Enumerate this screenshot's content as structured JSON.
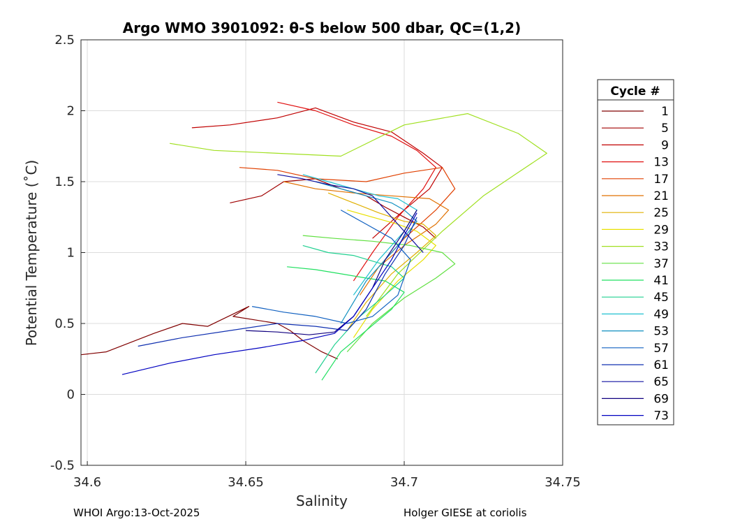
{
  "chart_data": {
    "type": "line",
    "title": "Argo WMO 3901092: θ-S below 500 dbar,  QC=(1,2)",
    "xlabel": "Salinity",
    "ylabel": "Potential Temperature (˚C)",
    "xlim": [
      34.598,
      34.75
    ],
    "ylim": [
      -0.5,
      2.5
    ],
    "xticks": [
      34.6,
      34.65,
      34.7,
      34.75
    ],
    "xtick_labels": [
      "34.6",
      "34.65",
      "34.7",
      "34.75"
    ],
    "yticks": [
      -0.5,
      0,
      0.5,
      1,
      1.5,
      2,
      2.5
    ],
    "ytick_labels": [
      "-0.5",
      "0",
      "0.5",
      "1",
      "1.5",
      "2",
      "2.5"
    ],
    "grid": true,
    "legend": {
      "title": "Cycle #",
      "placement": "right",
      "entries": [
        {
          "label": "1",
          "color": "#800000"
        },
        {
          "label": "5",
          "color": "#a00000"
        },
        {
          "label": "9",
          "color": "#c00000"
        },
        {
          "label": "13",
          "color": "#e01010"
        },
        {
          "label": "17",
          "color": "#e04000"
        },
        {
          "label": "21",
          "color": "#e07000"
        },
        {
          "label": "25",
          "color": "#e0b000"
        },
        {
          "label": "29",
          "color": "#e8e000"
        },
        {
          "label": "33",
          "color": "#a0e020"
        },
        {
          "label": "37",
          "color": "#60e040"
        },
        {
          "label": "41",
          "color": "#20e060"
        },
        {
          "label": "45",
          "color": "#20d090"
        },
        {
          "label": "49",
          "color": "#20c0d0"
        },
        {
          "label": "53",
          "color": "#1090c0"
        },
        {
          "label": "57",
          "color": "#1060c0"
        },
        {
          "label": "61",
          "color": "#1030b0"
        },
        {
          "label": "65",
          "color": "#1010a0"
        },
        {
          "label": "69",
          "color": "#100080"
        },
        {
          "label": "73",
          "color": "#0000c0"
        }
      ]
    },
    "series": [
      {
        "name": "1",
        "color": "#800000",
        "x": [
          34.598,
          34.606,
          34.621,
          34.63,
          34.638,
          34.651,
          34.646,
          34.66,
          34.664,
          34.668,
          34.674,
          34.679
        ],
        "y": [
          0.28,
          0.3,
          0.43,
          0.5,
          0.48,
          0.62,
          0.55,
          0.5,
          0.45,
          0.38,
          0.3,
          0.25
        ]
      },
      {
        "name": "5",
        "color": "#a00000",
        "x": [
          34.645,
          34.655,
          34.662,
          34.672,
          34.68,
          34.688,
          34.694,
          34.7,
          34.706,
          34.71
        ],
        "y": [
          1.35,
          1.4,
          1.5,
          1.52,
          1.45,
          1.4,
          1.32,
          1.25,
          1.18,
          1.1
        ]
      },
      {
        "name": "9",
        "color": "#c00000",
        "x": [
          34.633,
          34.645,
          34.66,
          34.672,
          34.684,
          34.696,
          34.706,
          34.712,
          34.708,
          34.7,
          34.69
        ],
        "y": [
          1.88,
          1.9,
          1.95,
          2.02,
          1.92,
          1.85,
          1.7,
          1.6,
          1.45,
          1.3,
          1.1
        ]
      },
      {
        "name": "13",
        "color": "#e01010",
        "x": [
          34.66,
          34.672,
          34.684,
          34.696,
          34.704,
          34.71,
          34.706,
          34.698,
          34.69,
          34.684
        ],
        "y": [
          2.06,
          2.0,
          1.9,
          1.82,
          1.72,
          1.6,
          1.45,
          1.25,
          1.0,
          0.8
        ]
      },
      {
        "name": "17",
        "color": "#e04000",
        "x": [
          34.648,
          34.66,
          34.672,
          34.688,
          34.7,
          34.712,
          34.716,
          34.71,
          34.7,
          34.692
        ],
        "y": [
          1.6,
          1.58,
          1.52,
          1.5,
          1.56,
          1.6,
          1.45,
          1.3,
          1.1,
          0.9
        ]
      },
      {
        "name": "21",
        "color": "#e07000",
        "x": [
          34.662,
          34.672,
          34.684,
          34.696,
          34.708,
          34.714,
          34.71,
          34.7,
          34.692,
          34.686
        ],
        "y": [
          1.5,
          1.45,
          1.42,
          1.4,
          1.38,
          1.3,
          1.2,
          1.05,
          0.9,
          0.7
        ]
      },
      {
        "name": "25",
        "color": "#e0b000",
        "x": [
          34.676,
          34.684,
          34.692,
          34.7,
          34.706,
          34.71,
          34.704,
          34.696,
          34.688,
          34.682
        ],
        "y": [
          1.42,
          1.35,
          1.28,
          1.22,
          1.2,
          1.12,
          1.0,
          0.85,
          0.65,
          0.45
        ]
      },
      {
        "name": "29",
        "color": "#e8e000",
        "x": [
          34.682,
          34.69,
          34.698,
          34.704,
          34.71,
          34.706,
          34.698,
          34.69,
          34.684
        ],
        "y": [
          1.3,
          1.25,
          1.2,
          1.15,
          1.05,
          0.95,
          0.8,
          0.6,
          0.4
        ]
      },
      {
        "name": "33",
        "color": "#a0e020",
        "x": [
          34.626,
          34.64,
          34.66,
          34.68,
          34.7,
          34.72,
          34.736,
          34.745,
          34.735,
          34.725,
          34.712,
          34.698,
          34.688
        ],
        "y": [
          1.77,
          1.72,
          1.7,
          1.68,
          1.9,
          1.98,
          1.84,
          1.7,
          1.55,
          1.4,
          1.15,
          0.85,
          0.55
        ]
      },
      {
        "name": "37",
        "color": "#60e040",
        "x": [
          34.668,
          34.678,
          34.69,
          34.702,
          34.712,
          34.716,
          34.71,
          34.7,
          34.69,
          34.682
        ],
        "y": [
          1.12,
          1.1,
          1.08,
          1.05,
          1.0,
          0.92,
          0.82,
          0.68,
          0.5,
          0.3
        ]
      },
      {
        "name": "41",
        "color": "#20e060",
        "x": [
          34.663,
          34.672,
          34.68,
          34.688,
          34.694,
          34.7,
          34.696,
          34.688,
          34.68,
          34.674
        ],
        "y": [
          0.9,
          0.88,
          0.85,
          0.82,
          0.8,
          0.72,
          0.6,
          0.45,
          0.3,
          0.1
        ]
      },
      {
        "name": "45",
        "color": "#20d090",
        "x": [
          34.668,
          34.676,
          34.684,
          34.69,
          34.696,
          34.7,
          34.694,
          34.686,
          34.678,
          34.672
        ],
        "y": [
          1.05,
          1.0,
          0.98,
          0.94,
          0.9,
          0.82,
          0.7,
          0.55,
          0.35,
          0.15
        ]
      },
      {
        "name": "49",
        "color": "#20c0d0",
        "x": [
          34.668,
          34.676,
          34.684,
          34.692,
          34.698,
          34.704,
          34.7,
          34.692,
          34.684
        ],
        "y": [
          1.55,
          1.5,
          1.45,
          1.4,
          1.38,
          1.3,
          1.15,
          0.95,
          0.7
        ]
      },
      {
        "name": "53",
        "color": "#1090c0",
        "x": [
          34.672,
          34.68,
          34.688,
          34.696,
          34.7,
          34.704,
          34.698,
          34.688,
          34.68
        ],
        "y": [
          1.5,
          1.45,
          1.4,
          1.35,
          1.3,
          1.22,
          1.05,
          0.8,
          0.5
        ]
      },
      {
        "name": "57",
        "color": "#1060c0",
        "x": [
          34.652,
          34.662,
          34.672,
          34.682,
          34.69,
          34.698,
          34.702,
          34.696,
          34.688,
          34.68
        ],
        "y": [
          0.62,
          0.58,
          0.55,
          0.5,
          0.55,
          0.7,
          0.95,
          1.1,
          1.2,
          1.3
        ]
      },
      {
        "name": "61",
        "color": "#1030b0",
        "x": [
          34.616,
          34.63,
          34.645,
          34.66,
          34.672,
          34.682,
          34.688,
          34.694,
          34.7,
          34.704
        ],
        "y": [
          0.34,
          0.4,
          0.45,
          0.5,
          0.48,
          0.45,
          0.6,
          0.85,
          1.05,
          1.25
        ]
      },
      {
        "name": "65",
        "color": "#1010a0",
        "x": [
          34.66,
          34.668,
          34.676,
          34.684,
          34.69,
          34.694,
          34.698,
          34.702,
          34.706
        ],
        "y": [
          1.55,
          1.52,
          1.48,
          1.45,
          1.4,
          1.3,
          1.2,
          1.1,
          1.0
        ]
      },
      {
        "name": "69",
        "color": "#100080",
        "x": [
          34.65,
          34.66,
          34.67,
          34.678,
          34.684,
          34.69,
          34.694,
          34.7,
          34.704
        ],
        "y": [
          0.45,
          0.44,
          0.42,
          0.44,
          0.55,
          0.75,
          0.95,
          1.15,
          1.3
        ]
      },
      {
        "name": "73",
        "color": "#0000c0",
        "x": [
          34.611,
          34.626,
          34.64,
          34.655,
          34.668,
          34.678,
          34.684,
          34.69,
          34.696,
          34.7,
          34.704
        ],
        "y": [
          0.14,
          0.22,
          0.28,
          0.33,
          0.38,
          0.43,
          0.55,
          0.75,
          0.95,
          1.12,
          1.28
        ]
      }
    ]
  },
  "footer": {
    "left": "WHOI Argo:13-Oct-2025",
    "right": "Holger GIESE at coriolis"
  }
}
